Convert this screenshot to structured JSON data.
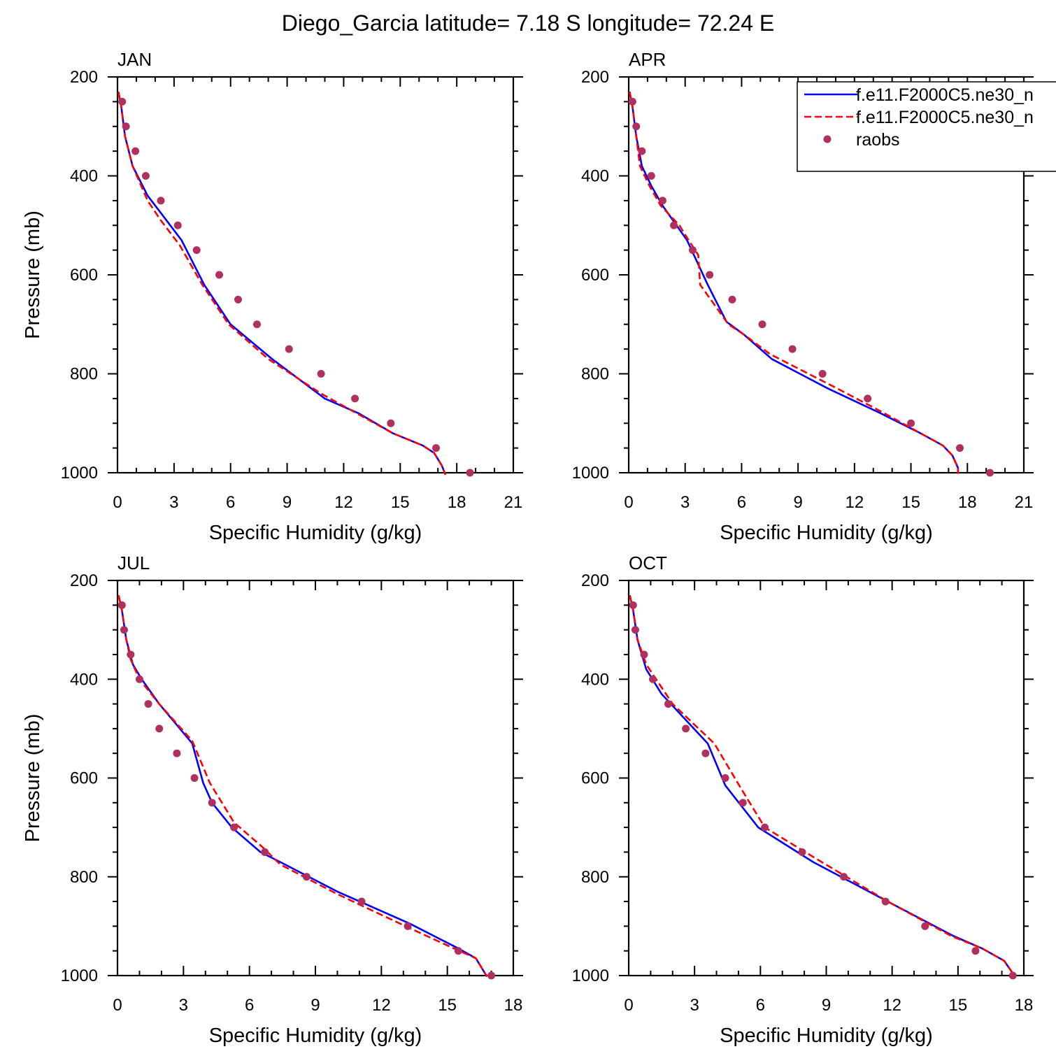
{
  "figure": {
    "title": "Diego_Garcia  latitude= 7.18 S longitude= 72.24 E"
  },
  "legend": {
    "entries": [
      {
        "label": "f.e11.F2000C5.ne30_n",
        "style": "solid",
        "color": "#0000ff"
      },
      {
        "label": "f.e11.F2000C5.ne30_n",
        "style": "dashed",
        "color": "#ff0000"
      },
      {
        "label": "raobs",
        "style": "marker",
        "color": "#b03060"
      }
    ]
  },
  "colors": {
    "series_solid": "#0000ff",
    "series_dashed": "#ff0000",
    "raobs": "#b03060"
  },
  "chart_data": [
    {
      "type": "line",
      "panel_label": "JAN",
      "xlabel": "Specific Humidity (g/kg)",
      "ylabel": "Pressure (mb)",
      "xlim": [
        0,
        21
      ],
      "ylim": [
        200,
        1000
      ],
      "y_inverted": true,
      "xticks": [
        0,
        3,
        6,
        9,
        12,
        15,
        18,
        21
      ],
      "yticks": [
        200,
        400,
        600,
        800,
        1000
      ],
      "series": [
        {
          "style": "solid",
          "points": [
            [
              0.05,
              230
            ],
            [
              0.2,
              260
            ],
            [
              0.4,
              320
            ],
            [
              0.8,
              380
            ],
            [
              1.6,
              440
            ],
            [
              2.4,
              480
            ],
            [
              3.4,
              530
            ],
            [
              4.6,
              620
            ],
            [
              6.0,
              700
            ],
            [
              8.2,
              770
            ],
            [
              11.0,
              850
            ],
            [
              12.8,
              880
            ],
            [
              14.6,
              920
            ],
            [
              16.2,
              945
            ],
            [
              16.8,
              960
            ],
            [
              17.2,
              985
            ],
            [
              17.4,
              1004
            ]
          ]
        },
        {
          "style": "dashed",
          "points": [
            [
              0.05,
              230
            ],
            [
              0.2,
              260
            ],
            [
              0.4,
              320
            ],
            [
              0.8,
              380
            ],
            [
              1.6,
              450
            ],
            [
              2.3,
              490
            ],
            [
              3.3,
              540
            ],
            [
              4.5,
              620
            ],
            [
              5.9,
              700
            ],
            [
              8.0,
              770
            ],
            [
              10.8,
              840
            ],
            [
              12.7,
              880
            ],
            [
              14.6,
              920
            ],
            [
              16.2,
              945
            ],
            [
              16.8,
              960
            ],
            [
              17.2,
              985
            ],
            [
              17.4,
              1004
            ]
          ]
        }
      ],
      "raobs": [
        [
          0.25,
          250
        ],
        [
          0.45,
          300
        ],
        [
          0.95,
          350
        ],
        [
          1.5,
          400
        ],
        [
          2.3,
          450
        ],
        [
          3.2,
          500
        ],
        [
          4.2,
          550
        ],
        [
          5.4,
          600
        ],
        [
          6.4,
          650
        ],
        [
          7.4,
          700
        ],
        [
          9.1,
          750
        ],
        [
          10.8,
          800
        ],
        [
          12.6,
          850
        ],
        [
          14.5,
          900
        ],
        [
          16.9,
          950
        ],
        [
          18.7,
          1000
        ]
      ]
    },
    {
      "type": "line",
      "panel_label": "APR",
      "xlabel": "Specific Humidity (g/kg)",
      "ylabel": "",
      "xlim": [
        0,
        21
      ],
      "ylim": [
        200,
        1000
      ],
      "y_inverted": true,
      "xticks": [
        0,
        3,
        6,
        9,
        12,
        15,
        18,
        21
      ],
      "yticks": [
        200,
        400,
        600,
        800,
        1000
      ],
      "series": [
        {
          "style": "solid",
          "points": [
            [
              0.05,
              230
            ],
            [
              0.2,
              260
            ],
            [
              0.4,
              320
            ],
            [
              0.7,
              380
            ],
            [
              1.2,
              420
            ],
            [
              1.8,
              460
            ],
            [
              3.1,
              530
            ],
            [
              4.2,
              620
            ],
            [
              5.2,
              695
            ],
            [
              6.1,
              720
            ],
            [
              7.6,
              770
            ],
            [
              10.6,
              830
            ],
            [
              13.4,
              880
            ],
            [
              15.5,
              920
            ],
            [
              16.7,
              945
            ],
            [
              17.2,
              965
            ],
            [
              17.5,
              990
            ],
            [
              17.5,
              1002
            ]
          ]
        },
        {
          "style": "dashed",
          "points": [
            [
              0.05,
              230
            ],
            [
              0.2,
              260
            ],
            [
              0.4,
              320
            ],
            [
              0.6,
              380
            ],
            [
              1.1,
              420
            ],
            [
              1.7,
              460
            ],
            [
              2.7,
              500
            ],
            [
              3.1,
              525
            ],
            [
              3.7,
              560
            ],
            [
              3.8,
              620
            ],
            [
              5.3,
              700
            ],
            [
              6.1,
              720
            ],
            [
              7.5,
              760
            ],
            [
              11.1,
              830
            ],
            [
              13.6,
              880
            ],
            [
              15.5,
              920
            ],
            [
              16.7,
              945
            ],
            [
              17.2,
              965
            ],
            [
              17.5,
              990
            ],
            [
              17.5,
              1002
            ]
          ]
        }
      ],
      "raobs": [
        [
          0.2,
          250
        ],
        [
          0.4,
          300
        ],
        [
          0.7,
          350
        ],
        [
          1.2,
          400
        ],
        [
          1.8,
          450
        ],
        [
          2.4,
          500
        ],
        [
          3.4,
          550
        ],
        [
          4.3,
          600
        ],
        [
          5.5,
          650
        ],
        [
          7.1,
          700
        ],
        [
          8.7,
          750
        ],
        [
          10.3,
          800
        ],
        [
          12.7,
          850
        ],
        [
          15.0,
          900
        ],
        [
          17.6,
          950
        ],
        [
          19.2,
          1000
        ]
      ]
    },
    {
      "type": "line",
      "panel_label": "JUL",
      "xlabel": "Specific Humidity (g/kg)",
      "ylabel": "Pressure (mb)",
      "xlim": [
        0,
        18
      ],
      "ylim": [
        200,
        1000
      ],
      "y_inverted": true,
      "xticks": [
        0,
        3,
        6,
        9,
        12,
        15,
        18
      ],
      "yticks": [
        200,
        400,
        600,
        800,
        1000
      ],
      "series": [
        {
          "style": "solid",
          "points": [
            [
              0.05,
              230
            ],
            [
              0.2,
              260
            ],
            [
              0.4,
              320
            ],
            [
              0.7,
              370
            ],
            [
              1.1,
              400
            ],
            [
              1.9,
              450
            ],
            [
              3.4,
              530
            ],
            [
              3.9,
              610
            ],
            [
              4.3,
              650
            ],
            [
              5.2,
              700
            ],
            [
              6.5,
              750
            ],
            [
              7.4,
              770
            ],
            [
              10.0,
              830
            ],
            [
              13.3,
              895
            ],
            [
              15.5,
              945
            ],
            [
              16.3,
              965
            ],
            [
              16.8,
              1002
            ]
          ]
        },
        {
          "style": "dashed",
          "points": [
            [
              0.05,
              230
            ],
            [
              0.2,
              260
            ],
            [
              0.4,
              320
            ],
            [
              0.6,
              360
            ],
            [
              1.0,
              400
            ],
            [
              1.9,
              450
            ],
            [
              3.4,
              525
            ],
            [
              4.2,
              610
            ],
            [
              5.3,
              690
            ],
            [
              6.6,
              740
            ],
            [
              7.4,
              775
            ],
            [
              10.0,
              835
            ],
            [
              13.1,
              900
            ],
            [
              15.3,
              945
            ],
            [
              16.3,
              965
            ],
            [
              16.8,
              1002
            ]
          ]
        }
      ],
      "raobs": [
        [
          0.2,
          250
        ],
        [
          0.3,
          300
        ],
        [
          0.6,
          350
        ],
        [
          1.0,
          400
        ],
        [
          1.4,
          450
        ],
        [
          1.9,
          500
        ],
        [
          2.7,
          550
        ],
        [
          3.5,
          600
        ],
        [
          4.3,
          650
        ],
        [
          5.3,
          700
        ],
        [
          6.7,
          750
        ],
        [
          8.6,
          800
        ],
        [
          11.1,
          850
        ],
        [
          13.2,
          900
        ],
        [
          15.5,
          950
        ],
        [
          17.0,
          1000
        ]
      ]
    },
    {
      "type": "line",
      "panel_label": "OCT",
      "xlabel": "Specific Humidity (g/kg)",
      "ylabel": "",
      "xlim": [
        0,
        18
      ],
      "ylim": [
        200,
        1000
      ],
      "y_inverted": true,
      "xticks": [
        0,
        3,
        6,
        9,
        12,
        15,
        18
      ],
      "yticks": [
        200,
        400,
        600,
        800,
        1000
      ],
      "series": [
        {
          "style": "solid",
          "points": [
            [
              0.05,
              230
            ],
            [
              0.2,
              260
            ],
            [
              0.4,
              320
            ],
            [
              0.8,
              380
            ],
            [
              1.5,
              430
            ],
            [
              3.6,
              530
            ],
            [
              4.4,
              615
            ],
            [
              5.9,
              700
            ],
            [
              8.4,
              770
            ],
            [
              11.8,
              850
            ],
            [
              14.8,
              920
            ],
            [
              16.1,
              945
            ],
            [
              17.1,
              970
            ],
            [
              17.6,
              1002
            ]
          ]
        },
        {
          "style": "dashed",
          "points": [
            [
              0.05,
              230
            ],
            [
              0.2,
              260
            ],
            [
              0.4,
              320
            ],
            [
              0.8,
              370
            ],
            [
              2.0,
              450
            ],
            [
              3.9,
              530
            ],
            [
              5.1,
              620
            ],
            [
              6.2,
              700
            ],
            [
              8.6,
              765
            ],
            [
              11.8,
              850
            ],
            [
              14.7,
              920
            ],
            [
              16.1,
              945
            ],
            [
              17.1,
              970
            ],
            [
              17.6,
              1002
            ]
          ]
        }
      ],
      "raobs": [
        [
          0.2,
          250
        ],
        [
          0.3,
          300
        ],
        [
          0.7,
          350
        ],
        [
          1.1,
          400
        ],
        [
          1.8,
          450
        ],
        [
          2.6,
          500
        ],
        [
          3.5,
          550
        ],
        [
          4.4,
          600
        ],
        [
          5.2,
          650
        ],
        [
          6.2,
          700
        ],
        [
          7.9,
          750
        ],
        [
          9.8,
          800
        ],
        [
          11.7,
          850
        ],
        [
          13.5,
          900
        ],
        [
          15.8,
          950
        ],
        [
          17.5,
          1000
        ]
      ]
    }
  ]
}
